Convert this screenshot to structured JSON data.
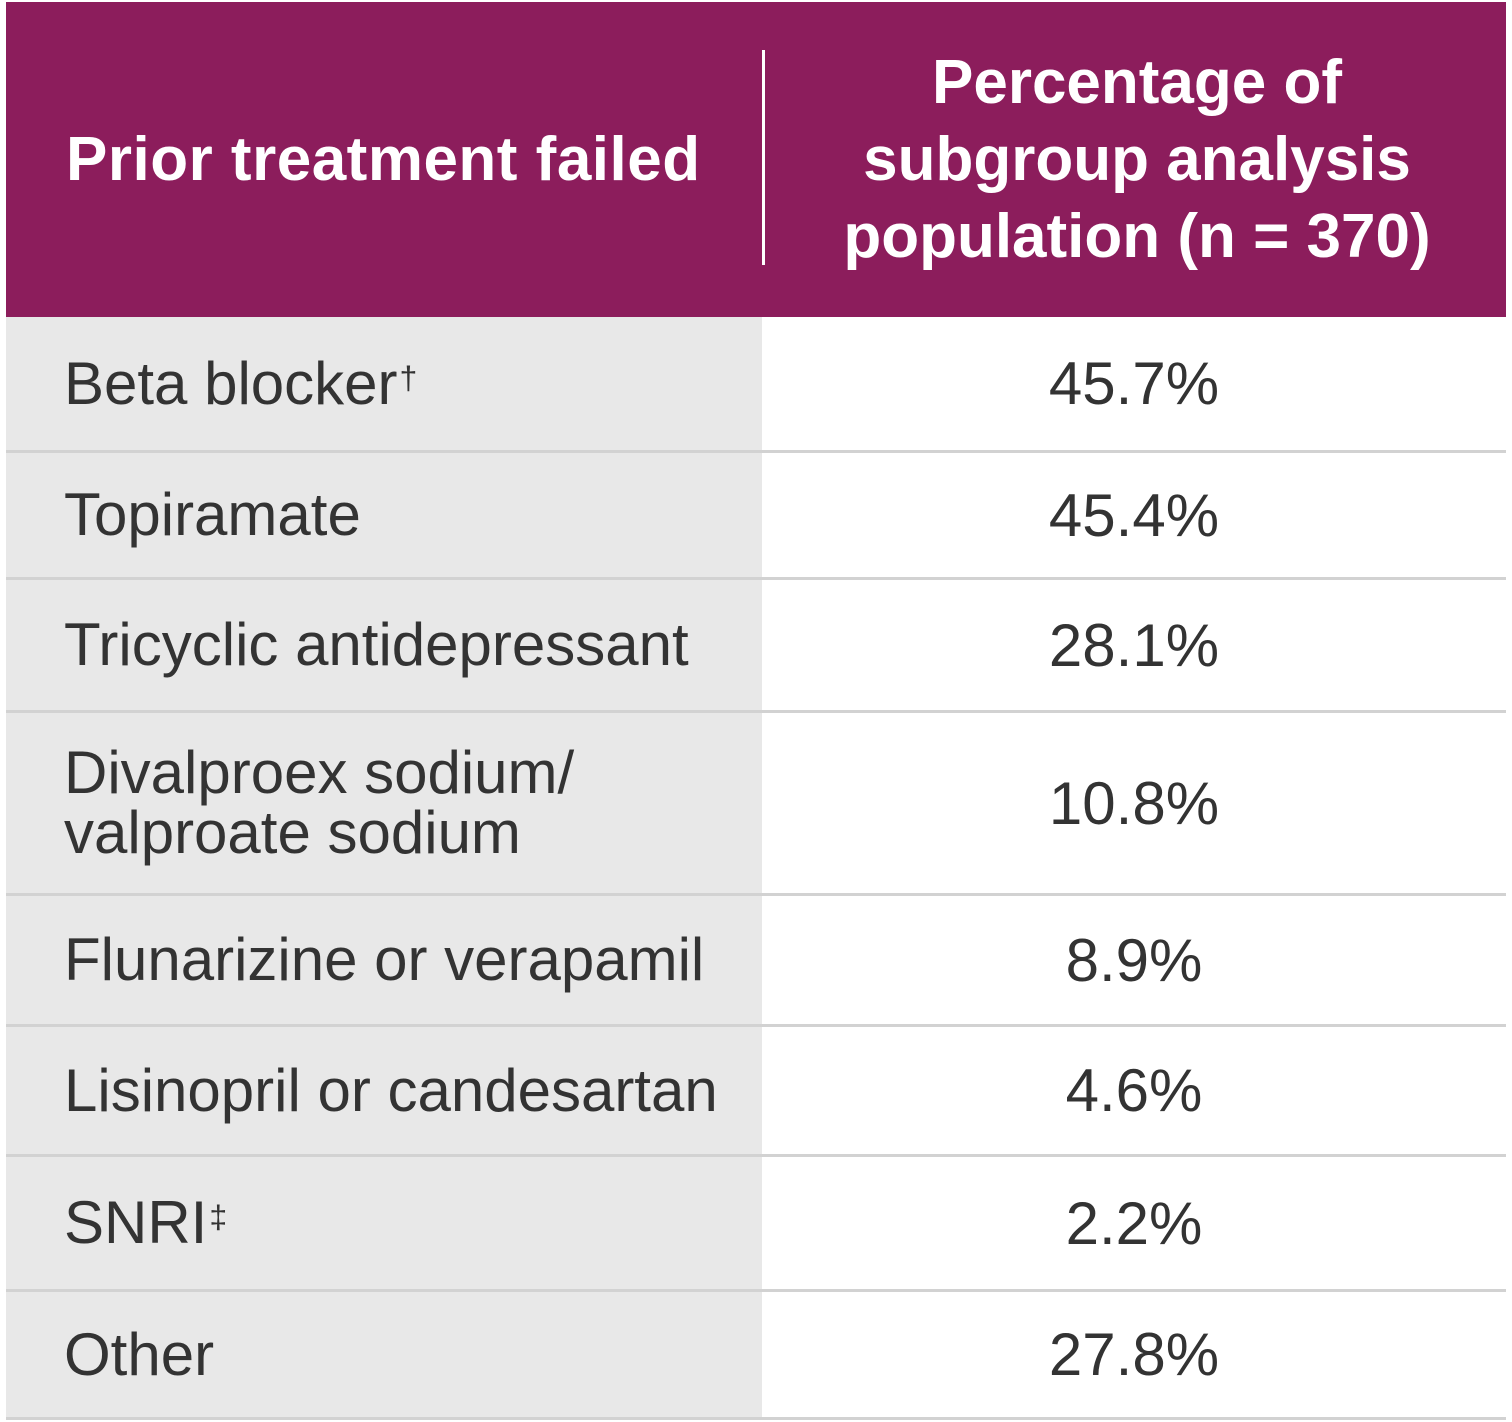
{
  "header": {
    "col1": "Prior treatment failed",
    "col2_lines": [
      "Percentage of",
      "subgroup analysis",
      "population (n = 370)"
    ]
  },
  "rows": [
    {
      "label": "Beta blocker",
      "sup": "†",
      "value": "45.7%"
    },
    {
      "label": "Topiramate",
      "sup": "",
      "value": "45.4%"
    },
    {
      "label": "Tricyclic antidepressant",
      "sup": "",
      "value": "28.1%"
    },
    {
      "label_lines": [
        "Divalproex sodium/",
        "valproate sodium"
      ],
      "value": "10.8%"
    },
    {
      "label": "Flunarizine or verapamil",
      "sup": "",
      "value": "8.9%"
    },
    {
      "label": "Lisinopril or candesartan",
      "sup": "",
      "value": "4.6%"
    },
    {
      "label": "SNRI",
      "sup": "‡",
      "value": "2.2%"
    },
    {
      "label": "Other",
      "sup": "",
      "value": "27.8%"
    }
  ],
  "colors": {
    "header_bg": "#8c1d5c",
    "label_bg": "#e8e8e8",
    "text": "#333333"
  }
}
